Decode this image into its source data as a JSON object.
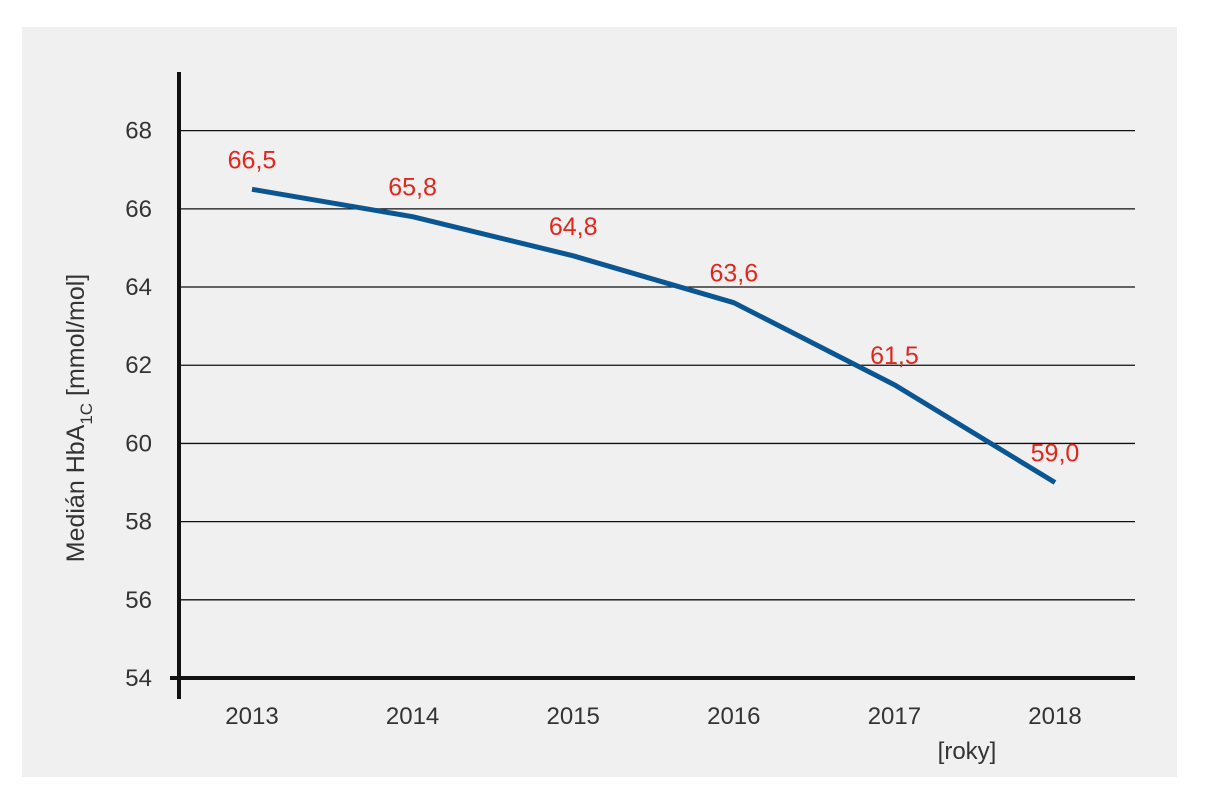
{
  "chart_data": {
    "type": "line",
    "x": [
      "2013",
      "2014",
      "2015",
      "2016",
      "2017",
      "2018"
    ],
    "series": [
      {
        "values": [
          66.5,
          65.8,
          64.8,
          63.6,
          61.5,
          59.0
        ]
      }
    ],
    "data_labels": [
      "66,5",
      "65,8",
      "64,8",
      "63,6",
      "61,5",
      "59,0"
    ],
    "ylim": [
      54,
      69.5
    ],
    "yticks": [
      54,
      56,
      58,
      60,
      62,
      64,
      66,
      68
    ],
    "ytick_labels": [
      "54",
      "56",
      "58",
      "60",
      "62",
      "64",
      "66",
      "68"
    ],
    "ylabel": {
      "main": "Medián HbA",
      "sub": "1C",
      "unit": " [mmol/mol]"
    },
    "xunit": "[roky]",
    "grid": true,
    "colors": {
      "line": "#0a5693",
      "data_label": "#e2261c",
      "grid": "#111111",
      "axis": "#111111",
      "background": "#f0f0f0"
    }
  }
}
